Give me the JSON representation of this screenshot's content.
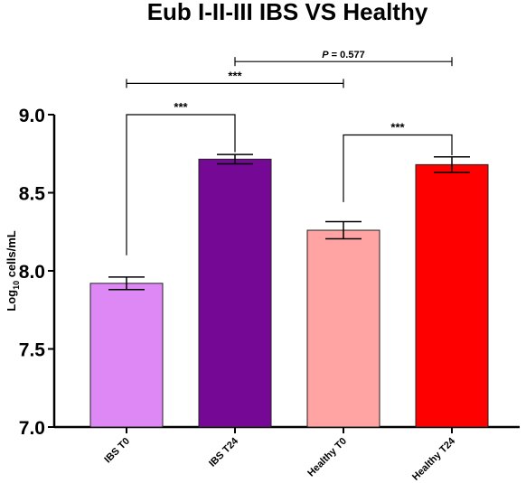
{
  "chart_data": {
    "type": "bar",
    "title": "Eub I-II-III IBS VS Healthy",
    "ylabel_prefix": "Log",
    "ylabel_sub": "10",
    "ylabel_suffix": " cells/mL",
    "ylim": [
      7.0,
      9.0
    ],
    "yticks": [
      "7.0",
      "7.5",
      "8.0",
      "8.5",
      "9.0"
    ],
    "ytick_values": [
      7.0,
      7.5,
      8.0,
      8.5,
      9.0
    ],
    "categories": [
      "IBS T0",
      "IBS T24",
      "Healthy T0",
      "Healthy T24"
    ],
    "values": [
      7.92,
      8.715,
      8.26,
      8.68
    ],
    "errors": [
      0.04,
      0.03,
      0.055,
      0.05
    ],
    "colors": [
      "#dd88f5",
      "#750895",
      "#ffa3a3",
      "#ff0000"
    ],
    "comparisons": [
      {
        "from": 0,
        "to": 1,
        "label": "***",
        "level": 9.0
      },
      {
        "from": 2,
        "to": 3,
        "label": "***",
        "level": 8.87
      },
      {
        "from": 0,
        "to": 2,
        "label": "***",
        "level": 9.2
      },
      {
        "from": 1,
        "to": 3,
        "label": "P = 0.577",
        "level": 9.34
      }
    ],
    "grid": false
  }
}
